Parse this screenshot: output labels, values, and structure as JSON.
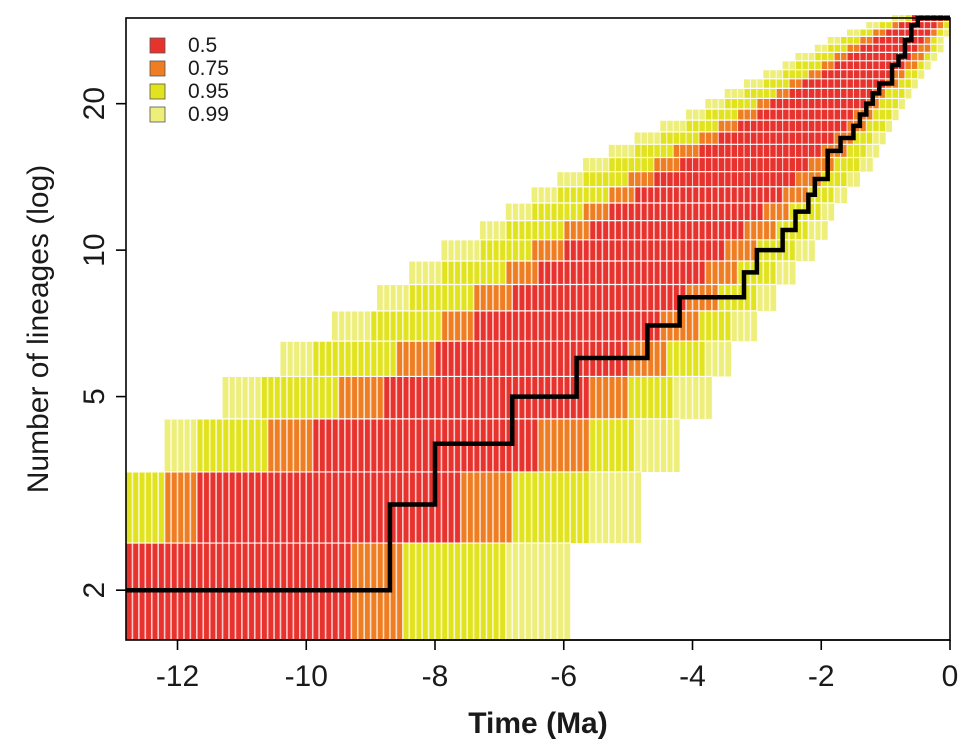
{
  "chart_data": {
    "type": "heatmap",
    "title": "",
    "xlabel": "Time (Ma)",
    "ylabel": "Number of lineages (log)",
    "xlim": [
      -12.8,
      0
    ],
    "ylim": [
      1.58,
      30
    ],
    "y_scale": "log",
    "x_ticks": [
      -12,
      -10,
      -8,
      -6,
      -4,
      -2,
      0
    ],
    "y_ticks": [
      2,
      5,
      10,
      20
    ],
    "grid": false,
    "legend_position": "top-left",
    "legend": [
      {
        "label": "0.5",
        "color": "#e8322d"
      },
      {
        "label": "0.75",
        "color": "#ef7d22"
      },
      {
        "label": "0.95",
        "color": "#e2e31f"
      },
      {
        "label": "0.99",
        "color": "#eeee7a"
      }
    ],
    "interval_colors": {
      "0.5": "#e8322d",
      "0.75": "#ef7d22",
      "0.95": "#e2e31f",
      "0.99": "#eeee7a"
    },
    "bands": [
      {
        "n": 2,
        "segments": [
          [
            -12.8,
            -9.3,
            "0.5"
          ],
          [
            -9.3,
            -8.5,
            "0.75"
          ],
          [
            -8.5,
            -6.9,
            "0.95"
          ],
          [
            -6.9,
            -5.9,
            "0.99"
          ]
        ]
      },
      {
        "n": 3,
        "segments": [
          [
            -12.8,
            -12.2,
            "0.95"
          ],
          [
            -12.2,
            -11.7,
            "0.75"
          ],
          [
            -11.7,
            -7.6,
            "0.5"
          ],
          [
            -7.6,
            -6.8,
            "0.75"
          ],
          [
            -6.8,
            -5.6,
            "0.95"
          ],
          [
            -5.6,
            -4.8,
            "0.99"
          ]
        ]
      },
      {
        "n": 4,
        "segments": [
          [
            -12.2,
            -11.7,
            "0.99"
          ],
          [
            -11.7,
            -10.6,
            "0.95"
          ],
          [
            -10.6,
            -9.9,
            "0.75"
          ],
          [
            -9.9,
            -6.4,
            "0.5"
          ],
          [
            -6.4,
            -5.6,
            "0.75"
          ],
          [
            -5.6,
            -4.9,
            "0.95"
          ],
          [
            -4.9,
            -4.2,
            "0.99"
          ]
        ]
      },
      {
        "n": 5,
        "segments": [
          [
            -11.3,
            -10.7,
            "0.99"
          ],
          [
            -10.7,
            -9.5,
            "0.95"
          ],
          [
            -9.5,
            -8.8,
            "0.75"
          ],
          [
            -8.8,
            -5.6,
            "0.5"
          ],
          [
            -5.6,
            -5.0,
            "0.75"
          ],
          [
            -5.0,
            -4.3,
            "0.95"
          ],
          [
            -4.3,
            -3.7,
            "0.99"
          ]
        ]
      },
      {
        "n": 6,
        "segments": [
          [
            -10.4,
            -9.9,
            "0.99"
          ],
          [
            -9.9,
            -8.6,
            "0.95"
          ],
          [
            -8.6,
            -8.0,
            "0.75"
          ],
          [
            -8.0,
            -5.0,
            "0.5"
          ],
          [
            -5.0,
            -4.4,
            "0.75"
          ],
          [
            -4.4,
            -3.8,
            "0.95"
          ],
          [
            -3.8,
            -3.4,
            "0.99"
          ]
        ]
      },
      {
        "n": 7,
        "segments": [
          [
            -9.6,
            -9.0,
            "0.99"
          ],
          [
            -9.0,
            -7.9,
            "0.95"
          ],
          [
            -7.9,
            -7.4,
            "0.75"
          ],
          [
            -7.4,
            -4.5,
            "0.5"
          ],
          [
            -4.5,
            -3.9,
            "0.75"
          ],
          [
            -3.9,
            -3.4,
            "0.95"
          ],
          [
            -3.4,
            -3.0,
            "0.99"
          ]
        ]
      },
      {
        "n": 8,
        "segments": [
          [
            -8.9,
            -8.4,
            "0.99"
          ],
          [
            -8.4,
            -7.4,
            "0.95"
          ],
          [
            -7.4,
            -6.8,
            "0.75"
          ],
          [
            -6.8,
            -4.1,
            "0.5"
          ],
          [
            -4.1,
            -3.6,
            "0.75"
          ],
          [
            -3.6,
            -3.0,
            "0.95"
          ],
          [
            -3.0,
            -2.7,
            "0.99"
          ]
        ]
      },
      {
        "n": 9,
        "segments": [
          [
            -8.4,
            -7.9,
            "0.99"
          ],
          [
            -7.9,
            -6.9,
            "0.95"
          ],
          [
            -6.9,
            -6.4,
            "0.75"
          ],
          [
            -6.4,
            -3.8,
            "0.5"
          ],
          [
            -3.8,
            -3.3,
            "0.75"
          ],
          [
            -3.3,
            -2.7,
            "0.95"
          ],
          [
            -2.7,
            -2.4,
            "0.99"
          ]
        ]
      },
      {
        "n": 10,
        "segments": [
          [
            -7.9,
            -7.3,
            "0.99"
          ],
          [
            -7.3,
            -6.5,
            "0.95"
          ],
          [
            -6.5,
            -6.0,
            "0.75"
          ],
          [
            -6.0,
            -3.5,
            "0.5"
          ],
          [
            -3.5,
            -3.0,
            "0.75"
          ],
          [
            -3.0,
            -2.4,
            "0.95"
          ],
          [
            -2.4,
            -2.1,
            "0.99"
          ]
        ]
      },
      {
        "n": 11,
        "segments": [
          [
            -7.3,
            -6.9,
            "0.99"
          ],
          [
            -6.9,
            -6.0,
            "0.95"
          ],
          [
            -6.0,
            -5.6,
            "0.75"
          ],
          [
            -5.6,
            -3.2,
            "0.5"
          ],
          [
            -3.2,
            -2.7,
            "0.75"
          ],
          [
            -2.7,
            -2.2,
            "0.95"
          ],
          [
            -2.2,
            -1.9,
            "0.99"
          ]
        ]
      },
      {
        "n": 12,
        "segments": [
          [
            -6.9,
            -6.5,
            "0.99"
          ],
          [
            -6.5,
            -5.7,
            "0.95"
          ],
          [
            -5.7,
            -5.3,
            "0.75"
          ],
          [
            -5.3,
            -2.9,
            "0.5"
          ],
          [
            -2.9,
            -2.5,
            "0.75"
          ],
          [
            -2.5,
            -2.0,
            "0.95"
          ],
          [
            -2.0,
            -1.8,
            "0.99"
          ]
        ]
      },
      {
        "n": 13,
        "segments": [
          [
            -6.5,
            -6.1,
            "0.99"
          ],
          [
            -6.1,
            -5.3,
            "0.95"
          ],
          [
            -5.3,
            -4.9,
            "0.75"
          ],
          [
            -4.9,
            -2.6,
            "0.5"
          ],
          [
            -2.6,
            -2.2,
            "0.75"
          ],
          [
            -2.2,
            -1.8,
            "0.95"
          ],
          [
            -1.8,
            -1.6,
            "0.99"
          ]
        ]
      },
      {
        "n": 14,
        "segments": [
          [
            -6.1,
            -5.7,
            "0.99"
          ],
          [
            -5.7,
            -5.0,
            "0.95"
          ],
          [
            -5.0,
            -4.6,
            "0.75"
          ],
          [
            -4.6,
            -2.4,
            "0.5"
          ],
          [
            -2.4,
            -2.0,
            "0.75"
          ],
          [
            -2.0,
            -1.6,
            "0.95"
          ],
          [
            -1.6,
            -1.4,
            "0.99"
          ]
        ]
      },
      {
        "n": 15,
        "segments": [
          [
            -5.7,
            -5.3,
            "0.99"
          ],
          [
            -5.3,
            -4.6,
            "0.95"
          ],
          [
            -4.6,
            -4.2,
            "0.75"
          ],
          [
            -4.2,
            -2.2,
            "0.5"
          ],
          [
            -2.2,
            -1.8,
            "0.75"
          ],
          [
            -1.8,
            -1.4,
            "0.95"
          ],
          [
            -1.4,
            -1.2,
            "0.99"
          ]
        ]
      },
      {
        "n": 16,
        "segments": [
          [
            -5.3,
            -4.9,
            "0.99"
          ],
          [
            -4.9,
            -4.3,
            "0.95"
          ],
          [
            -4.3,
            -3.9,
            "0.75"
          ],
          [
            -3.9,
            -2.0,
            "0.5"
          ],
          [
            -2.0,
            -1.6,
            "0.75"
          ],
          [
            -1.6,
            -1.3,
            "0.95"
          ],
          [
            -1.3,
            -1.1,
            "0.99"
          ]
        ]
      },
      {
        "n": 17,
        "segments": [
          [
            -4.9,
            -4.5,
            "0.99"
          ],
          [
            -4.5,
            -3.9,
            "0.95"
          ],
          [
            -3.9,
            -3.6,
            "0.75"
          ],
          [
            -3.6,
            -1.8,
            "0.5"
          ],
          [
            -1.8,
            -1.5,
            "0.75"
          ],
          [
            -1.5,
            -1.2,
            "0.95"
          ],
          [
            -1.2,
            -1.0,
            "0.99"
          ]
        ]
      },
      {
        "n": 18,
        "segments": [
          [
            -4.5,
            -4.1,
            "0.99"
          ],
          [
            -4.1,
            -3.6,
            "0.95"
          ],
          [
            -3.6,
            -3.3,
            "0.75"
          ],
          [
            -3.3,
            -1.6,
            "0.5"
          ],
          [
            -1.6,
            -1.3,
            "0.75"
          ],
          [
            -1.3,
            -1.0,
            "0.95"
          ],
          [
            -1.0,
            -0.9,
            "0.99"
          ]
        ]
      },
      {
        "n": 19,
        "segments": [
          [
            -4.1,
            -3.8,
            "0.99"
          ],
          [
            -3.8,
            -3.3,
            "0.95"
          ],
          [
            -3.3,
            -3.0,
            "0.75"
          ],
          [
            -3.0,
            -1.5,
            "0.5"
          ],
          [
            -1.5,
            -1.2,
            "0.75"
          ],
          [
            -1.2,
            -0.9,
            "0.95"
          ],
          [
            -0.9,
            -0.8,
            "0.99"
          ]
        ]
      },
      {
        "n": 20,
        "segments": [
          [
            -3.8,
            -3.5,
            "0.99"
          ],
          [
            -3.5,
            -3.0,
            "0.95"
          ],
          [
            -3.0,
            -2.8,
            "0.75"
          ],
          [
            -2.8,
            -1.3,
            "0.5"
          ],
          [
            -1.3,
            -1.1,
            "0.75"
          ],
          [
            -1.1,
            -0.8,
            "0.95"
          ],
          [
            -0.8,
            -0.7,
            "0.99"
          ]
        ]
      },
      {
        "n": 21,
        "segments": [
          [
            -3.5,
            -3.2,
            "0.99"
          ],
          [
            -3.2,
            -2.7,
            "0.95"
          ],
          [
            -2.7,
            -2.5,
            "0.75"
          ],
          [
            -2.5,
            -1.2,
            "0.5"
          ],
          [
            -1.2,
            -1.0,
            "0.75"
          ],
          [
            -1.0,
            -0.7,
            "0.95"
          ],
          [
            -0.7,
            -0.6,
            "0.99"
          ]
        ]
      },
      {
        "n": 22,
        "segments": [
          [
            -3.2,
            -2.9,
            "0.99"
          ],
          [
            -2.9,
            -2.5,
            "0.95"
          ],
          [
            -2.5,
            -2.3,
            "0.75"
          ],
          [
            -2.3,
            -1.0,
            "0.5"
          ],
          [
            -1.0,
            -0.8,
            "0.75"
          ],
          [
            -0.8,
            -0.6,
            "0.95"
          ],
          [
            -0.6,
            -0.5,
            "0.99"
          ]
        ]
      },
      {
        "n": 23,
        "segments": [
          [
            -2.9,
            -2.6,
            "0.99"
          ],
          [
            -2.6,
            -2.2,
            "0.95"
          ],
          [
            -2.2,
            -2.0,
            "0.75"
          ],
          [
            -2.0,
            -0.9,
            "0.5"
          ],
          [
            -0.9,
            -0.7,
            "0.75"
          ],
          [
            -0.7,
            -0.5,
            "0.95"
          ],
          [
            -0.5,
            -0.4,
            "0.99"
          ]
        ]
      },
      {
        "n": 24,
        "segments": [
          [
            -2.6,
            -2.4,
            "0.99"
          ],
          [
            -2.4,
            -2.0,
            "0.95"
          ],
          [
            -2.0,
            -1.8,
            "0.75"
          ],
          [
            -1.8,
            -0.7,
            "0.5"
          ],
          [
            -0.7,
            -0.5,
            "0.75"
          ],
          [
            -0.5,
            -0.4,
            "0.95"
          ],
          [
            -0.4,
            -0.3,
            "0.99"
          ]
        ]
      },
      {
        "n": 25,
        "segments": [
          [
            -2.4,
            -2.1,
            "0.99"
          ],
          [
            -2.1,
            -1.8,
            "0.95"
          ],
          [
            -1.8,
            -1.6,
            "0.75"
          ],
          [
            -1.6,
            -0.6,
            "0.5"
          ],
          [
            -0.6,
            -0.4,
            "0.75"
          ],
          [
            -0.4,
            -0.3,
            "0.95"
          ],
          [
            -0.3,
            -0.2,
            "0.99"
          ]
        ]
      },
      {
        "n": 26,
        "segments": [
          [
            -2.1,
            -1.9,
            "0.99"
          ],
          [
            -1.9,
            -1.6,
            "0.95"
          ],
          [
            -1.6,
            -1.4,
            "0.75"
          ],
          [
            -1.4,
            -0.5,
            "0.5"
          ],
          [
            -0.5,
            -0.3,
            "0.75"
          ],
          [
            -0.3,
            -0.2,
            "0.95"
          ],
          [
            -0.2,
            -0.1,
            "0.99"
          ]
        ]
      },
      {
        "n": 27,
        "segments": [
          [
            -1.9,
            -1.7,
            "0.99"
          ],
          [
            -1.7,
            -1.4,
            "0.95"
          ],
          [
            -1.4,
            -1.2,
            "0.75"
          ],
          [
            -1.2,
            -0.4,
            "0.5"
          ],
          [
            -0.4,
            -0.3,
            "0.75"
          ],
          [
            -0.3,
            -0.2,
            "0.95"
          ],
          [
            -0.2,
            -0.1,
            "0.99"
          ]
        ]
      },
      {
        "n": 28,
        "segments": [
          [
            -1.6,
            -1.4,
            "0.99"
          ],
          [
            -1.4,
            -1.2,
            "0.95"
          ],
          [
            -1.2,
            -1.0,
            "0.75"
          ],
          [
            -1.0,
            -0.3,
            "0.5"
          ],
          [
            -0.3,
            -0.2,
            "0.75"
          ],
          [
            -0.2,
            -0.1,
            "0.95"
          ],
          [
            -0.1,
            0.0,
            "0.99"
          ]
        ]
      },
      {
        "n": 29,
        "segments": [
          [
            -1.3,
            -1.1,
            "0.99"
          ],
          [
            -1.1,
            -0.9,
            "0.95"
          ],
          [
            -0.9,
            -0.8,
            "0.75"
          ],
          [
            -0.8,
            -0.2,
            "0.5"
          ],
          [
            -0.2,
            -0.1,
            "0.75"
          ],
          [
            -0.1,
            0.0,
            "0.95"
          ]
        ]
      },
      {
        "n": 30,
        "segments": [
          [
            -0.9,
            -0.7,
            "0.99"
          ],
          [
            -0.7,
            -0.6,
            "0.95"
          ],
          [
            -0.6,
            -0.1,
            "0.5"
          ],
          [
            -0.1,
            0.0,
            "0.75"
          ]
        ]
      }
    ],
    "series": [
      {
        "type": "step",
        "x": [
          -12.8,
          -8.7,
          -8.7,
          -8.0,
          -8.0,
          -6.8,
          -6.8,
          -5.8,
          -5.8,
          -4.7,
          -4.7,
          -4.2,
          -4.2,
          -3.2,
          -3.2,
          -3.0,
          -3.0,
          -2.6,
          -2.6,
          -2.4,
          -2.4,
          -2.2,
          -2.2,
          -2.1,
          -2.1,
          -1.9,
          -1.9,
          -1.7,
          -1.7,
          -1.5,
          -1.5,
          -1.4,
          -1.4,
          -1.3,
          -1.3,
          -1.2,
          -1.2,
          -1.1,
          -1.1,
          -0.9,
          -0.9,
          -0.8,
          -0.8,
          -0.7,
          -0.7,
          -0.6,
          -0.6,
          -0.5,
          -0.5,
          0.0
        ],
        "y": [
          2,
          2,
          3,
          3,
          4,
          4,
          5,
          5,
          6,
          6,
          7,
          7,
          8,
          8,
          9,
          9,
          10,
          10,
          11,
          11,
          12,
          12,
          13,
          13,
          14,
          14,
          16,
          16,
          17,
          17,
          18,
          18,
          19,
          19,
          20,
          20,
          21,
          21,
          22,
          22,
          24,
          24,
          25,
          25,
          27,
          27,
          29,
          29,
          30,
          30
        ]
      }
    ]
  }
}
